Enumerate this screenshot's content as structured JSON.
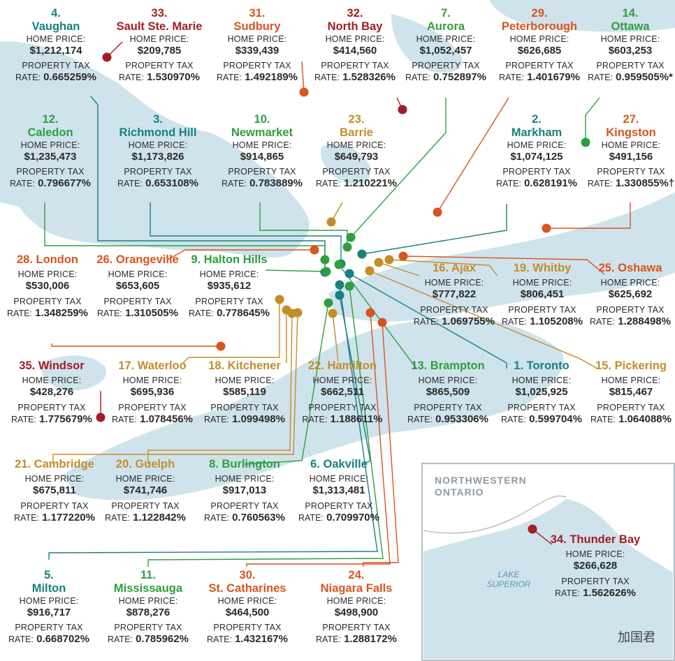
{
  "labels": {
    "home_price": "HOME PRICE:",
    "property_tax": "PROPERTY TAX",
    "rate": "RATE:"
  },
  "colors": {
    "red": "#a31d22",
    "orange": "#d9541e",
    "green": "#2e9e3f",
    "teal": "#18807f",
    "gold": "#c38d27",
    "water": "#cfe3ec",
    "land": "#ffffff"
  },
  "cities": [
    {
      "rank": "1.",
      "name": "Toronto",
      "home_price": "$1,025,925",
      "tax_rate": "0.599704%",
      "color": "teal"
    },
    {
      "rank": "2.",
      "name": "Markham",
      "home_price": "$1,074,125",
      "tax_rate": "0.628191%",
      "color": "teal"
    },
    {
      "rank": "3.",
      "name": "Richmond Hill",
      "home_price": "$1,173,826",
      "tax_rate": "0.653108%",
      "color": "teal"
    },
    {
      "rank": "4.",
      "name": "Vaughan",
      "home_price": "$1,212,174",
      "tax_rate": "0.665259%",
      "color": "teal"
    },
    {
      "rank": "5.",
      "name": "Milton",
      "home_price": "$916,717",
      "tax_rate": "0.668702%",
      "color": "teal"
    },
    {
      "rank": "6.",
      "name": "Oakville",
      "home_price": "$1,313,481",
      "tax_rate": "0.709970%",
      "color": "teal"
    },
    {
      "rank": "7.",
      "name": "Aurora",
      "home_price": "$1,052,457",
      "tax_rate": "0.752897%",
      "color": "green"
    },
    {
      "rank": "8.",
      "name": "Burlington",
      "home_price": "$917,013",
      "tax_rate": "0.760563%",
      "color": "green"
    },
    {
      "rank": "9.",
      "name": "Halton Hills",
      "home_price": "$935,612",
      "tax_rate": "0.778645%",
      "color": "green"
    },
    {
      "rank": "10.",
      "name": "Newmarket",
      "home_price": "$914,865",
      "tax_rate": "0.783889%",
      "color": "green"
    },
    {
      "rank": "11.",
      "name": "Mississauga",
      "home_price": "$878,276",
      "tax_rate": "0.785962%",
      "color": "green"
    },
    {
      "rank": "12.",
      "name": "Caledon",
      "home_price": "$1,235,473",
      "tax_rate": "0.796677%",
      "color": "green"
    },
    {
      "rank": "13.",
      "name": "Brampton",
      "home_price": "$865,509",
      "tax_rate": "0.953306%",
      "color": "green"
    },
    {
      "rank": "14.",
      "name": "Ottawa",
      "home_price": "$603,253",
      "tax_rate": "0.959505%*",
      "color": "green"
    },
    {
      "rank": "15.",
      "name": "Pickering",
      "home_price": "$815,467",
      "tax_rate": "1.064088%",
      "color": "gold"
    },
    {
      "rank": "16.",
      "name": "Ajax",
      "home_price": "$777,822",
      "tax_rate": "1.069755%",
      "color": "gold"
    },
    {
      "rank": "17.",
      "name": "Waterloo",
      "home_price": "$695,936",
      "tax_rate": "1.078456%",
      "color": "gold"
    },
    {
      "rank": "18.",
      "name": "Kitchener",
      "home_price": "$585,119",
      "tax_rate": "1.099498%",
      "color": "gold"
    },
    {
      "rank": "19.",
      "name": "Whitby",
      "home_price": "$806,451",
      "tax_rate": "1.105208%",
      "color": "gold"
    },
    {
      "rank": "20.",
      "name": "Guelph",
      "home_price": "$741,746",
      "tax_rate": "1.122842%",
      "color": "gold"
    },
    {
      "rank": "21.",
      "name": "Cambridge",
      "home_price": "$675,811",
      "tax_rate": "1.177220%",
      "color": "gold"
    },
    {
      "rank": "22.",
      "name": "Hamilton",
      "home_price": "$662,511",
      "tax_rate": "1.188611%",
      "color": "gold"
    },
    {
      "rank": "23.",
      "name": "Barrie",
      "home_price": "$649,793",
      "tax_rate": "1.210221%",
      "color": "gold"
    },
    {
      "rank": "24.",
      "name": "Niagara Falls",
      "home_price": "$498,900",
      "tax_rate": "1.288172%",
      "color": "orange"
    },
    {
      "rank": "25.",
      "name": "Oshawa",
      "home_price": "$625,692",
      "tax_rate": "1.288498%",
      "color": "orange"
    },
    {
      "rank": "26.",
      "name": "Orangeville",
      "home_price": "$653,605",
      "tax_rate": "1.310505%",
      "color": "orange"
    },
    {
      "rank": "27.",
      "name": "Kingston",
      "home_price": "$491,156",
      "tax_rate": "1.330855%†",
      "color": "orange"
    },
    {
      "rank": "28.",
      "name": "London",
      "home_price": "$530,006",
      "tax_rate": "1.348259%",
      "color": "orange"
    },
    {
      "rank": "29.",
      "name": "Peterborough",
      "home_price": "$626,685",
      "tax_rate": "1.401679%",
      "color": "orange"
    },
    {
      "rank": "30.",
      "name": "St. Catharines",
      "home_price": "$464,500",
      "tax_rate": "1.432167%",
      "color": "orange"
    },
    {
      "rank": "31.",
      "name": "Sudbury",
      "home_price": "$339,439",
      "tax_rate": "1.492189%",
      "color": "orange"
    },
    {
      "rank": "32.",
      "name": "North Bay",
      "home_price": "$414,560",
      "tax_rate": "1.528326%",
      "color": "red"
    },
    {
      "rank": "33.",
      "name": "Sault Ste. Marie",
      "home_price": "$209,785",
      "tax_rate": "1.530970%",
      "color": "red"
    },
    {
      "rank": "34.",
      "name": "Thunder Bay",
      "home_price": "$266,628",
      "tax_rate": "1.562626%",
      "color": "red"
    },
    {
      "rank": "35.",
      "name": "Windsor",
      "home_price": "$428,276",
      "tax_rate": "1.775679%",
      "color": "red"
    }
  ],
  "inset": {
    "title_line1": "NORTHWESTERN",
    "title_line2": "ONTARIO",
    "lake_line1": "LAKE",
    "lake_line2": "SUPERIOR"
  },
  "watermark": "加国君"
}
